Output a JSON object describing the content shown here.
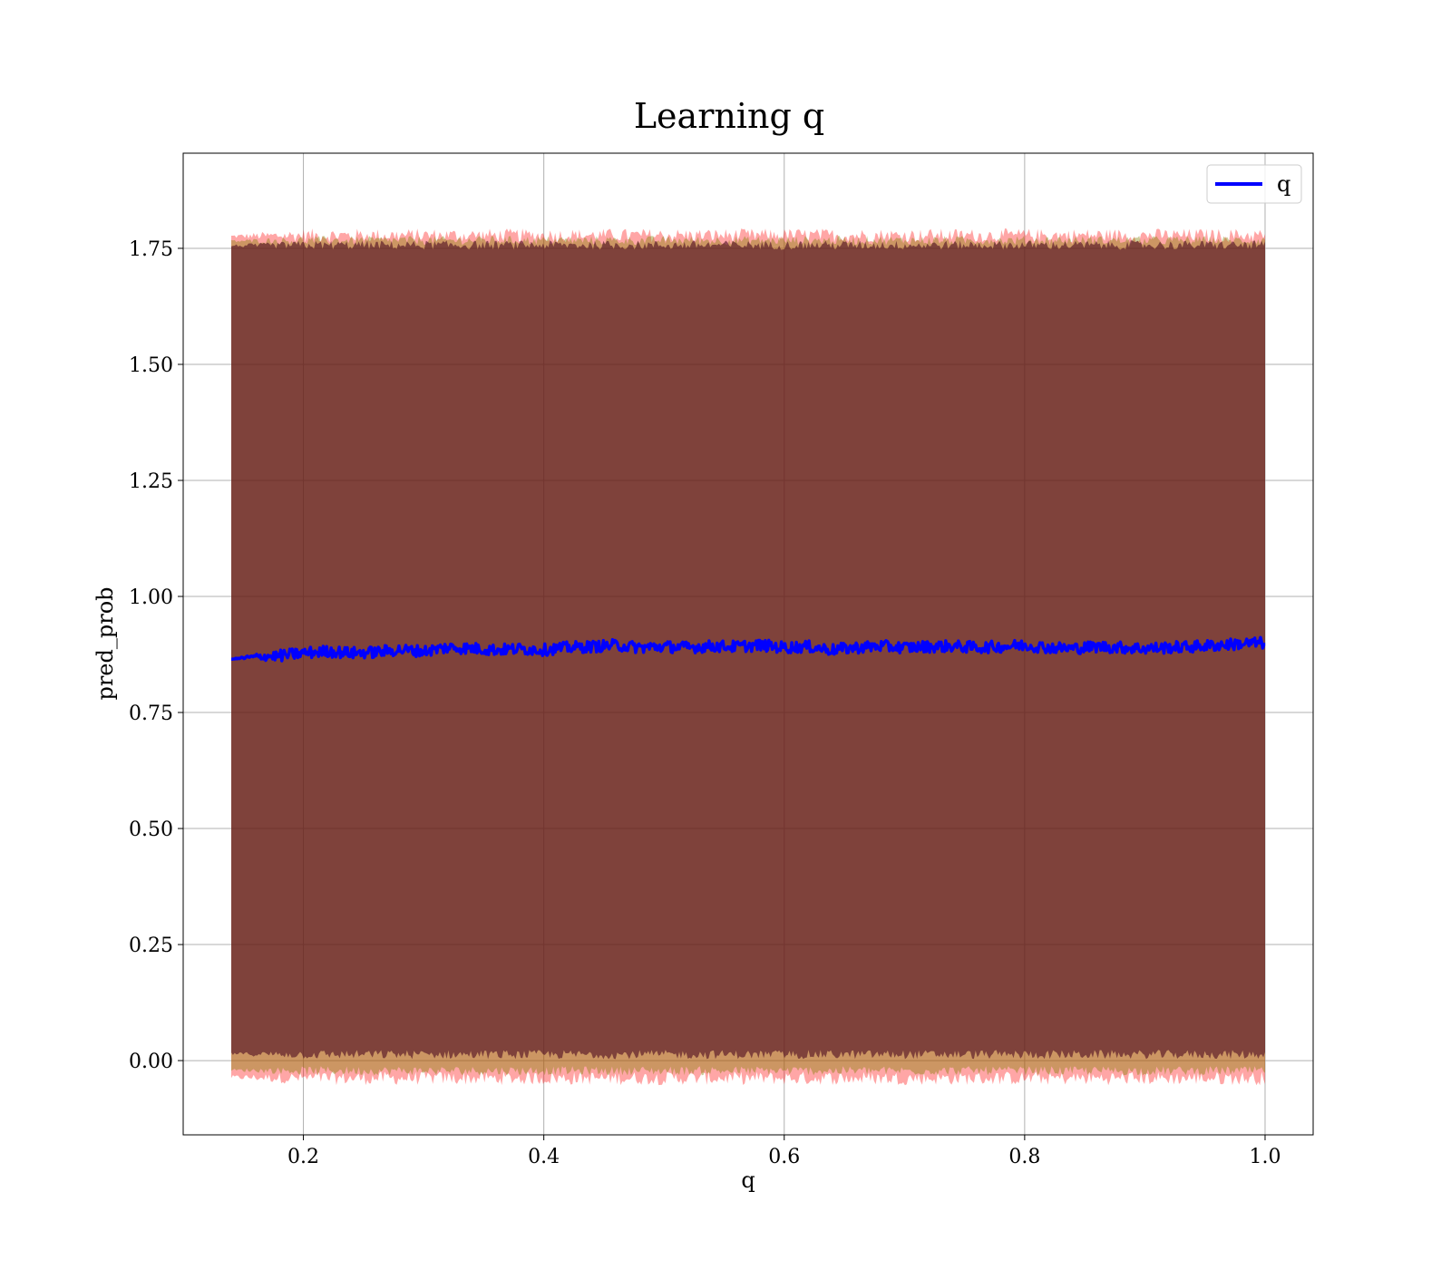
{
  "chart_data": {
    "type": "line",
    "title": "Learning q",
    "xlabel": "q",
    "ylabel": "pred_prob",
    "xlim": [
      0.1,
      1.04
    ],
    "ylim": [
      -0.16,
      1.955
    ],
    "grid": true,
    "legend_position": "upper right",
    "xticks": [
      0.2,
      0.4,
      0.6,
      0.8,
      1.0
    ],
    "xtick_labels": [
      "0.2",
      "0.4",
      "0.6",
      "0.8",
      "1.0"
    ],
    "yticks": [
      0.0,
      0.25,
      0.5,
      0.75,
      1.0,
      1.25,
      1.5,
      1.75
    ],
    "ytick_labels": [
      "0.00",
      "0.25",
      "0.50",
      "0.75",
      "1.00",
      "1.25",
      "1.50",
      "1.75"
    ],
    "x_range": [
      0.14,
      1.0
    ],
    "series": [
      {
        "name": "q",
        "color": "#0000ff",
        "x": [
          0.14,
          0.16,
          0.18,
          0.2,
          0.22,
          0.24,
          0.26,
          0.28,
          0.3,
          0.32,
          0.34,
          0.36,
          0.38,
          0.4,
          0.42,
          0.44,
          0.46,
          0.48,
          0.5,
          0.52,
          0.54,
          0.56,
          0.58,
          0.6,
          0.62,
          0.64,
          0.66,
          0.68,
          0.7,
          0.72,
          0.74,
          0.76,
          0.78,
          0.8,
          0.82,
          0.84,
          0.86,
          0.88,
          0.9,
          0.92,
          0.94,
          0.96,
          0.98,
          1.0
        ],
        "values": [
          0.865,
          0.87,
          0.872,
          0.878,
          0.882,
          0.878,
          0.88,
          0.885,
          0.882,
          0.89,
          0.888,
          0.885,
          0.887,
          0.885,
          0.89,
          0.892,
          0.895,
          0.89,
          0.892,
          0.89,
          0.893,
          0.892,
          0.895,
          0.89,
          0.892,
          0.885,
          0.89,
          0.893,
          0.89,
          0.892,
          0.893,
          0.89,
          0.892,
          0.895,
          0.89,
          0.888,
          0.892,
          0.89,
          0.888,
          0.89,
          0.892,
          0.895,
          0.898,
          0.9
        ],
        "noise_amplitude": 0.025
      }
    ],
    "bands": [
      {
        "role": "outer",
        "color": "#ff0000",
        "opacity": 0.35,
        "upper": 1.775,
        "lower": -0.035,
        "noise_amplitude": 0.03
      },
      {
        "role": "middle",
        "color": "#808000",
        "opacity": 0.4,
        "upper": 1.765,
        "lower": -0.02,
        "noise_amplitude": 0.02
      },
      {
        "role": "inner",
        "color": "#4b0a22",
        "opacity": 0.6,
        "upper": 1.755,
        "lower": 0.015,
        "noise_amplitude": 0.02
      }
    ]
  }
}
